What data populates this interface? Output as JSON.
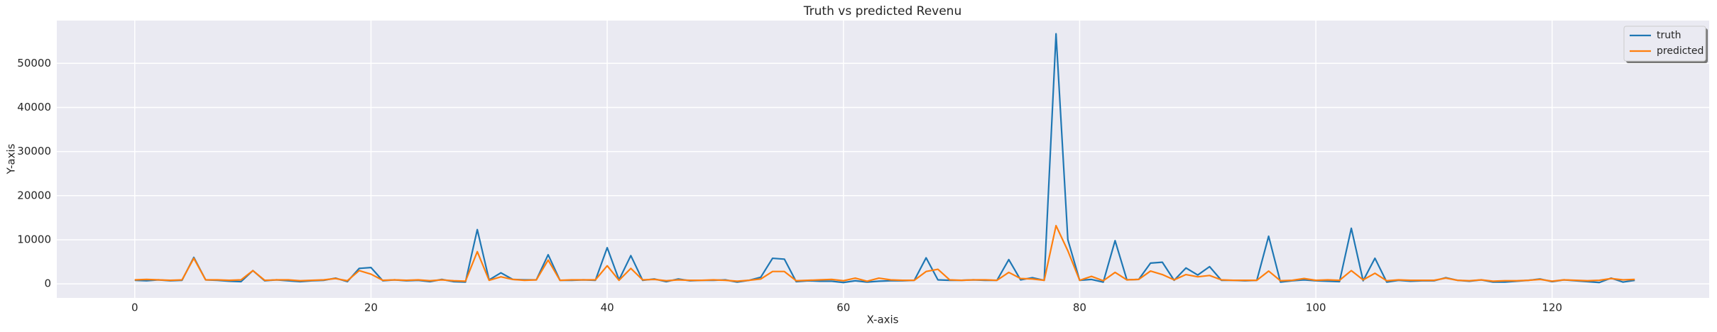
{
  "chart_data": {
    "type": "line",
    "title": "Truth vs predicted Revenu",
    "x_label": "X-axis",
    "y_label": "Y-axis",
    "x": [
      0,
      1,
      2,
      3,
      4,
      5,
      6,
      7,
      8,
      9,
      10,
      11,
      12,
      13,
      14,
      15,
      16,
      17,
      18,
      19,
      20,
      21,
      22,
      23,
      24,
      25,
      26,
      27,
      28,
      29,
      30,
      31,
      32,
      33,
      34,
      35,
      36,
      37,
      38,
      39,
      40,
      41,
      42,
      43,
      44,
      45,
      46,
      47,
      48,
      49,
      50,
      51,
      52,
      53,
      54,
      55,
      56,
      57,
      58,
      59,
      60,
      61,
      62,
      63,
      64,
      65,
      66,
      67,
      68,
      69,
      70,
      71,
      72,
      73,
      74,
      75,
      76,
      77,
      78,
      79,
      80,
      81,
      82,
      83,
      84,
      85,
      86,
      87,
      88,
      89,
      90,
      91,
      92,
      93,
      94,
      95,
      96,
      97,
      98,
      99,
      100,
      101,
      102,
      103,
      104,
      105,
      106,
      107,
      108,
      109,
      110,
      111,
      112,
      113,
      114,
      115,
      116,
      117,
      118,
      119,
      120,
      121,
      122,
      123,
      124,
      125,
      126,
      127
    ],
    "series": [
      {
        "name": "truth",
        "color": "#1f77b4",
        "values": [
          800,
          700,
          900,
          700,
          800,
          6000,
          900,
          800,
          600,
          500,
          3000,
          700,
          900,
          700,
          500,
          700,
          800,
          1300,
          500,
          3500,
          3700,
          700,
          900,
          700,
          800,
          500,
          1000,
          500,
          400,
          12300,
          900,
          2500,
          1000,
          900,
          900,
          6600,
          800,
          800,
          900,
          800,
          8200,
          900,
          6400,
          800,
          1100,
          500,
          1100,
          700,
          800,
          800,
          900,
          400,
          800,
          1500,
          5800,
          5600,
          500,
          700,
          600,
          600,
          300,
          700,
          400,
          600,
          700,
          700,
          800,
          5900,
          900,
          800,
          800,
          900,
          800,
          800,
          5500,
          900,
          1400,
          800,
          56700,
          10000,
          800,
          1000,
          400,
          9800,
          900,
          1000,
          4700,
          4900,
          800,
          3600,
          2000,
          3900,
          800,
          800,
          700,
          800,
          10800,
          400,
          700,
          900,
          700,
          600,
          500,
          12600,
          700,
          5800,
          400,
          800,
          600,
          700,
          700,
          1400,
          800,
          600,
          900,
          400,
          400,
          600,
          800,
          1100,
          500,
          900,
          700,
          500,
          300,
          1300,
          400,
          800
        ]
      },
      {
        "name": "predicted",
        "color": "#ff7f0e",
        "values": [
          900,
          1000,
          900,
          800,
          900,
          5800,
          900,
          900,
          800,
          900,
          3000,
          800,
          900,
          900,
          700,
          800,
          900,
          1200,
          700,
          3000,
          2200,
          800,
          900,
          800,
          900,
          700,
          900,
          700,
          600,
          7300,
          800,
          1600,
          1000,
          800,
          900,
          5400,
          800,
          900,
          900,
          900,
          4100,
          800,
          3500,
          900,
          1000,
          700,
          900,
          800,
          800,
          900,
          800,
          600,
          800,
          1100,
          2800,
          2800,
          700,
          800,
          900,
          1000,
          700,
          1300,
          600,
          1300,
          900,
          800,
          800,
          2800,
          3300,
          900,
          800,
          900,
          900,
          800,
          2600,
          1200,
          1100,
          800,
          13200,
          7500,
          800,
          1700,
          700,
          2600,
          900,
          1000,
          2900,
          2100,
          900,
          2100,
          1600,
          1900,
          900,
          800,
          800,
          800,
          2900,
          700,
          800,
          1200,
          800,
          900,
          800,
          3000,
          900,
          2400,
          700,
          900,
          800,
          800,
          800,
          1300,
          800,
          700,
          900,
          600,
          700,
          700,
          800,
          1000,
          600,
          900,
          800,
          700,
          800,
          1200,
          900,
          1000
        ]
      }
    ],
    "xlim": [
      -6.6,
      133.3
    ],
    "ylim": [
      -3200,
      59700
    ],
    "xticks": [
      0,
      20,
      40,
      60,
      80,
      100,
      120
    ],
    "yticks": [
      0,
      10000,
      20000,
      30000,
      40000,
      50000
    ],
    "grid": true,
    "legend": "upper right"
  }
}
